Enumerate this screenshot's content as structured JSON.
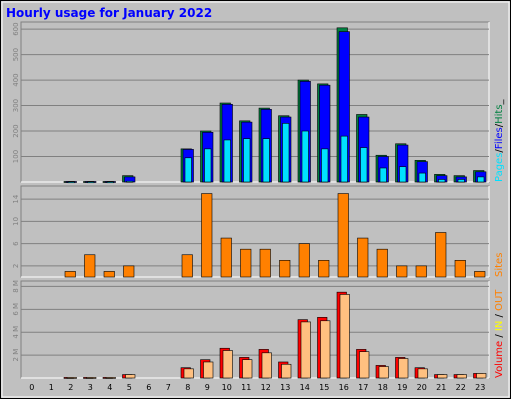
{
  "title": "Hourly usage for January 2022",
  "chart_data": [
    {
      "type": "bar",
      "panel": "top",
      "categories": [
        "0",
        "1",
        "2",
        "3",
        "4",
        "5",
        "6",
        "7",
        "8",
        "9",
        "10",
        "11",
        "12",
        "13",
        "14",
        "15",
        "16",
        "17",
        "18",
        "19",
        "20",
        "21",
        "22",
        "23"
      ],
      "series": [
        {
          "name": "Hits",
          "color": "#008040",
          "values": [
            0,
            0,
            2,
            2,
            2,
            25,
            0,
            0,
            130,
            200,
            310,
            240,
            290,
            260,
            400,
            385,
            605,
            265,
            105,
            150,
            85,
            30,
            25,
            45
          ]
        },
        {
          "name": "Files",
          "color": "#0000ff",
          "values": [
            0,
            0,
            2,
            2,
            2,
            20,
            0,
            0,
            128,
            195,
            305,
            235,
            285,
            255,
            395,
            380,
            590,
            255,
            100,
            145,
            80,
            25,
            20,
            40
          ]
        },
        {
          "name": "Pages",
          "color": "#00e0ff",
          "values": [
            0,
            0,
            1,
            1,
            1,
            3,
            0,
            0,
            95,
            130,
            165,
            170,
            170,
            230,
            200,
            130,
            180,
            135,
            55,
            60,
            35,
            10,
            10,
            20
          ]
        }
      ],
      "ylim": [
        0,
        620
      ],
      "yticks": [
        "100",
        "200",
        "300",
        "400",
        "500",
        "600"
      ],
      "legend": [
        "Pages",
        "/",
        "Files",
        "/",
        "Hits",
        "_"
      ],
      "legend_colors": [
        "#00e0ff",
        "#000000",
        "#0000ff",
        "#000000",
        "#008040",
        "#000000"
      ]
    },
    {
      "type": "bar",
      "panel": "middle",
      "categories": [
        "0",
        "1",
        "2",
        "3",
        "4",
        "5",
        "6",
        "7",
        "8",
        "9",
        "10",
        "11",
        "12",
        "13",
        "14",
        "15",
        "16",
        "17",
        "18",
        "19",
        "20",
        "21",
        "22",
        "23"
      ],
      "series": [
        {
          "name": "Sites",
          "color": "#ff8000",
          "values": [
            0,
            0,
            1,
            4,
            1,
            2,
            0,
            0,
            4,
            15,
            7,
            5,
            5,
            3,
            6,
            3,
            15,
            7,
            5,
            2,
            2,
            8,
            3,
            1
          ]
        }
      ],
      "ylim": [
        0,
        16
      ],
      "yticks": [
        "2",
        "6",
        "10",
        "14"
      ],
      "legend": [
        "Sites"
      ],
      "legend_colors": [
        "#ff8000"
      ]
    },
    {
      "type": "bar",
      "panel": "bottom",
      "categories": [
        "0",
        "1",
        "2",
        "3",
        "4",
        "5",
        "6",
        "7",
        "8",
        "9",
        "10",
        "11",
        "12",
        "13",
        "14",
        "15",
        "16",
        "17",
        "18",
        "19",
        "20",
        "21",
        "22",
        "23"
      ],
      "series": [
        {
          "name": "Volume",
          "color": "#ff0000",
          "values_mb": [
            0,
            0,
            0.05,
            0.05,
            0.05,
            0.3,
            0,
            0,
            0.9,
            1.6,
            2.6,
            1.8,
            2.5,
            1.4,
            5.1,
            5.3,
            7.5,
            2.5,
            1.1,
            1.8,
            0.9,
            0.3,
            0.3,
            0.4
          ]
        },
        {
          "name": "OUT",
          "color": "#ffc080",
          "values_mb": [
            0,
            0,
            0.05,
            0.05,
            0.05,
            0.3,
            0,
            0,
            0.8,
            1.4,
            2.4,
            1.6,
            2.2,
            1.2,
            4.9,
            5.0,
            7.3,
            2.3,
            1.0,
            1.7,
            0.8,
            0.3,
            0.3,
            0.4
          ]
        }
      ],
      "ylim_mb": [
        0,
        8.3
      ],
      "yticks": [
        "2 M",
        "4 M",
        "6 M",
        "8 M"
      ],
      "legend": [
        "Volume",
        " / ",
        "IN",
        " / ",
        "OUT"
      ],
      "legend_colors": [
        "#ff0000",
        "#000000",
        "#ffff00",
        "#000000",
        "#ff8000"
      ]
    }
  ]
}
